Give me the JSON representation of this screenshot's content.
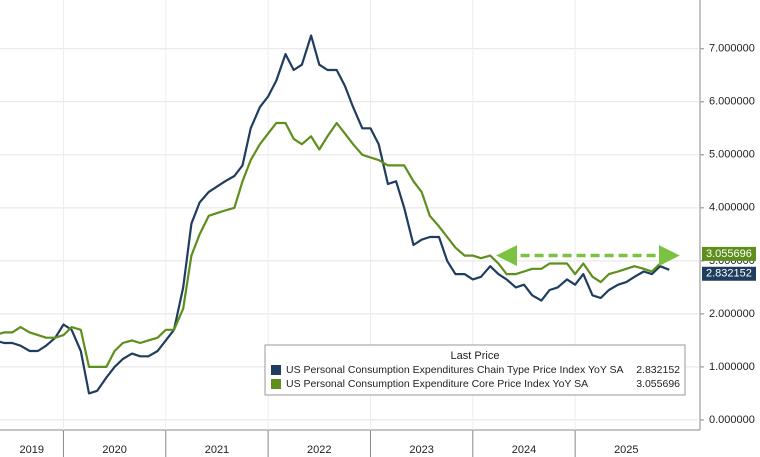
{
  "chart_data": {
    "type": "line",
    "x": [
      2019.33,
      2019.42,
      2019.5,
      2019.58,
      2019.67,
      2019.75,
      2019.83,
      2019.92,
      2020,
      2020.08,
      2020.17,
      2020.25,
      2020.33,
      2020.42,
      2020.5,
      2020.58,
      2020.67,
      2020.75,
      2020.83,
      2020.92,
      2021,
      2021.08,
      2021.17,
      2021.25,
      2021.33,
      2021.42,
      2021.5,
      2021.58,
      2021.67,
      2021.75,
      2021.83,
      2021.92,
      2022,
      2022.08,
      2022.17,
      2022.25,
      2022.33,
      2022.42,
      2022.5,
      2022.58,
      2022.67,
      2022.75,
      2022.83,
      2022.92,
      2023,
      2023.08,
      2023.17,
      2023.25,
      2023.33,
      2023.42,
      2023.5,
      2023.58,
      2023.67,
      2023.75,
      2023.83,
      2023.92,
      2024,
      2024.08,
      2024.17,
      2024.25,
      2024.33,
      2024.42,
      2024.5,
      2024.58,
      2024.67,
      2024.75,
      2024.83,
      2024.92,
      2025,
      2025.08,
      2025.17,
      2025.25,
      2025.33,
      2025.42,
      2025.5,
      2025.58,
      2025.67,
      2025.75,
      2025.83,
      2025.92
    ],
    "series": [
      {
        "name": "US Personal Consumption Expenditures Chain Type Price Index YoY SA",
        "color": "#1f3d5e",
        "values": [
          1.5,
          1.45,
          1.45,
          1.4,
          1.3,
          1.3,
          1.4,
          1.55,
          1.8,
          1.7,
          1.3,
          0.5,
          0.55,
          0.8,
          1.0,
          1.15,
          1.25,
          1.2,
          1.2,
          1.3,
          1.5,
          1.7,
          2.5,
          3.7,
          4.1,
          4.3,
          4.4,
          4.5,
          4.6,
          4.8,
          5.5,
          5.9,
          6.1,
          6.4,
          6.9,
          6.6,
          6.7,
          7.25,
          6.7,
          6.6,
          6.6,
          6.3,
          5.9,
          5.5,
          5.5,
          5.2,
          4.45,
          4.5,
          4.0,
          3.3,
          3.4,
          3.45,
          3.45,
          3.0,
          2.75,
          2.75,
          2.65,
          2.7,
          2.9,
          2.75,
          2.65,
          2.5,
          2.55,
          2.35,
          2.25,
          2.45,
          2.5,
          2.65,
          2.55,
          2.75,
          2.35,
          2.3,
          2.45,
          2.55,
          2.6,
          2.7,
          2.8,
          2.75,
          2.9,
          2.832152
        ]
      },
      {
        "name": "US Personal Consumption Expenditure Core Price Index YoY SA",
        "color": "#5e8f1c",
        "values": [
          1.6,
          1.65,
          1.65,
          1.75,
          1.65,
          1.6,
          1.55,
          1.55,
          1.6,
          1.75,
          1.7,
          1.0,
          1.0,
          1.0,
          1.3,
          1.45,
          1.5,
          1.45,
          1.5,
          1.55,
          1.7,
          1.7,
          2.1,
          3.1,
          3.5,
          3.85,
          3.9,
          3.95,
          4.0,
          4.5,
          4.9,
          5.2,
          5.4,
          5.6,
          5.6,
          5.3,
          5.2,
          5.35,
          5.1,
          5.35,
          5.6,
          5.4,
          5.2,
          5.0,
          4.95,
          4.9,
          4.8,
          4.8,
          4.8,
          4.5,
          4.3,
          3.85,
          3.65,
          3.45,
          3.25,
          3.1,
          3.1,
          3.05,
          3.1,
          2.95,
          2.75,
          2.75,
          2.8,
          2.85,
          2.85,
          2.95,
          2.95,
          2.95,
          2.75,
          2.95,
          2.7,
          2.6,
          2.75,
          2.8,
          2.85,
          2.9,
          2.85,
          2.8,
          2.95,
          3.055696
        ]
      }
    ],
    "legend_title": "Last Price",
    "xlim": [
      2019.38,
      2026.22
    ],
    "xticks": [
      2019,
      2020,
      2021,
      2022,
      2023,
      2024,
      2025
    ],
    "ylim": [
      -0.19,
      7.92
    ],
    "yticks": [
      {
        "value": 0,
        "label": "0.000000"
      },
      {
        "value": 1,
        "label": "1.000000"
      },
      {
        "value": 2,
        "label": "2.000000"
      },
      {
        "value": 3,
        "label": "3.000000"
      },
      {
        "value": 4,
        "label": "4.000000"
      },
      {
        "value": 5,
        "label": "5.000000"
      },
      {
        "value": 6,
        "label": "6.000000"
      },
      {
        "value": 7,
        "label": "7.000000"
      }
    ],
    "grid": true,
    "reference_arrow": {
      "y": 3.1,
      "x": [
        2024.33,
        2025.92
      ],
      "color": "#7cc242"
    }
  }
}
